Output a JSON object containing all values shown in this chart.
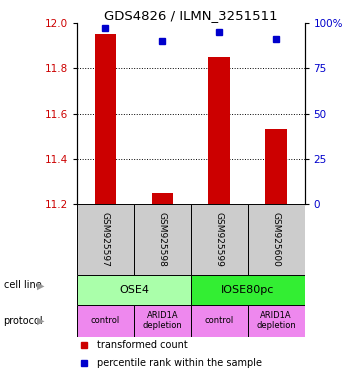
{
  "title": "GDS4826 / ILMN_3251511",
  "samples": [
    "GSM925597",
    "GSM925598",
    "GSM925599",
    "GSM925600"
  ],
  "bar_values": [
    11.95,
    11.25,
    11.85,
    11.53
  ],
  "percentile_values": [
    97,
    90,
    95,
    91
  ],
  "ylim_left": [
    11.2,
    12.0
  ],
  "ylim_right": [
    0,
    100
  ],
  "yticks_left": [
    11.2,
    11.4,
    11.6,
    11.8,
    12.0
  ],
  "yticks_right": [
    0,
    25,
    50,
    75,
    100
  ],
  "bar_color": "#cc0000",
  "dot_color": "#0000cc",
  "bar_bottom": 11.2,
  "cell_line_labels": [
    "OSE4",
    "IOSE80pc"
  ],
  "cell_line_colors": [
    "#aaffaa",
    "#33ee33"
  ],
  "cell_line_spans": [
    [
      0,
      2
    ],
    [
      2,
      4
    ]
  ],
  "protocol_labels": [
    "control",
    "ARID1A\ndepletion",
    "control",
    "ARID1A\ndepletion"
  ],
  "protocol_color": "#ee88ee",
  "legend_red_label": "transformed count",
  "legend_blue_label": "percentile rank within the sample",
  "sample_bg_color": "#cccccc",
  "label_color_left": "#cc0000",
  "label_color_right": "#0000cc"
}
